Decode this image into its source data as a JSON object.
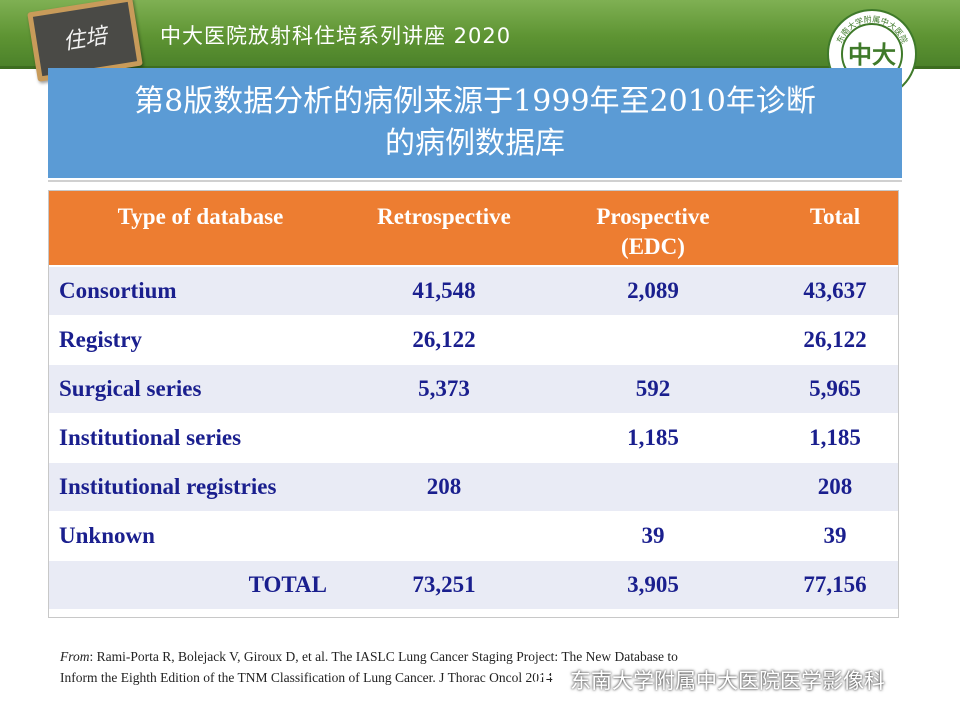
{
  "header": {
    "series_title": "中大医院放射科住培系列讲座 2020",
    "board_text": "住培",
    "seal_ring_text": "东南大学附属中大医院",
    "seal_center_text": "中大"
  },
  "slide": {
    "title_line1": "第8版数据分析的病例来源于1999年至2010年诊断",
    "title_line2": "的病例数据库"
  },
  "table": {
    "headers": {
      "col1": "Type of database",
      "col2": "Retrospective",
      "col3_line1": "Prospective",
      "col3_line2": "(EDC)",
      "col4": "Total"
    },
    "rows": [
      {
        "name": "Consortium",
        "retrospective": "41,548",
        "prospective": "2,089",
        "total": "43,637"
      },
      {
        "name": "Registry",
        "retrospective": "26,122",
        "prospective": "",
        "total": "26,122"
      },
      {
        "name": "Surgical series",
        "retrospective": "5,373",
        "prospective": "592",
        "total": "5,965"
      },
      {
        "name": "Institutional series",
        "retrospective": "",
        "prospective": "1,185",
        "total": "1,185"
      },
      {
        "name": "Institutional registries",
        "retrospective": "208",
        "prospective": "",
        "total": "208"
      },
      {
        "name": "Unknown",
        "retrospective": "",
        "prospective": "39",
        "total": "39"
      }
    ],
    "total_row": {
      "name": "TOTAL",
      "retrospective": "73,251",
      "prospective": "3,905",
      "total": "77,156"
    }
  },
  "citation": {
    "from_label": "From",
    "line1": ": Rami-Porta R, Bolejack V, Giroux D, et al. The IASLC Lung Cancer Staging Project: The New Database to",
    "line2": "Inform the Eighth Edition of the TNM Classification of Lung Cancer. J Thorac Oncol 2014"
  },
  "watermark": {
    "text": "东南大学附属中大医院医学影像科",
    "icon": "wechat-icon"
  },
  "colors": {
    "header_green": "#5e9433",
    "title_blue": "#5b9bd5",
    "table_header_orange": "#ed7d31",
    "table_text_navy": "#1a1f8e",
    "row_stripe": "#e9ebf5"
  }
}
